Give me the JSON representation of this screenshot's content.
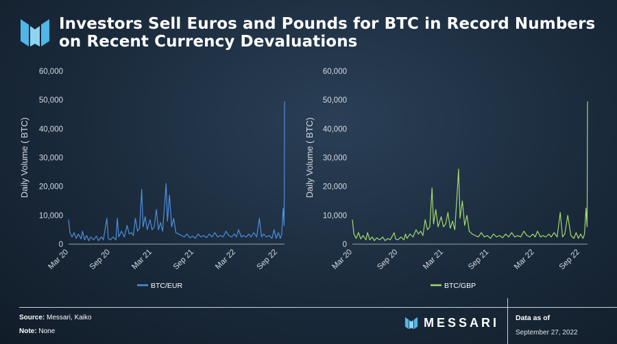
{
  "title": "Investors Sell Euros and Pounds for BTC in Record Numbers on Recent Currency Devaluations",
  "footer": {
    "source_label": "Source:",
    "source_value": "Messari, Kaiko",
    "note_label": "Note:",
    "note_value": "None",
    "brand": "MESSARI",
    "data_as_of_label": "Data as of",
    "data_as_of_date": "September 27, 2022"
  },
  "colors": {
    "eur": "#4f8fdc",
    "gbp": "#a4da6f",
    "brand": "#4fb6e8"
  },
  "chart_data": [
    {
      "type": "line",
      "ylabel": "Daily Volume ( BTC)",
      "xlabel": "",
      "ylim": [
        0,
        60000
      ],
      "yticks": [
        "0",
        "10,000",
        "20,000",
        "30,000",
        "40,000",
        "50,000",
        "60,000"
      ],
      "ytick_values": [
        0,
        10000,
        20000,
        30000,
        40000,
        50000,
        60000
      ],
      "xticks": [
        "Mar 20",
        "Sep 20",
        "Mar 21",
        "Sep 21",
        "Mar 22",
        "Sep 22"
      ],
      "xtick_months": [
        0,
        6,
        12,
        18,
        24,
        30
      ],
      "x_range_months": [
        0,
        31
      ],
      "grid": false,
      "legend": "bottom-center",
      "series": [
        {
          "name": "BTC/EUR",
          "color": "#4f8fdc",
          "points": [
            [
              0,
              8500
            ],
            [
              0.2,
              4000
            ],
            [
              0.5,
              2500
            ],
            [
              0.8,
              4000
            ],
            [
              1.1,
              2000
            ],
            [
              1.4,
              3500
            ],
            [
              1.8,
              1800
            ],
            [
              2.0,
              4500
            ],
            [
              2.3,
              1500
            ],
            [
              2.6,
              3000
            ],
            [
              2.9,
              1200
            ],
            [
              3.2,
              2500
            ],
            [
              3.6,
              1500
            ],
            [
              4.0,
              2800
            ],
            [
              4.3,
              1200
            ],
            [
              4.7,
              2500
            ],
            [
              5.0,
              1500
            ],
            [
              5.5,
              9000
            ],
            [
              5.7,
              2000
            ],
            [
              6.0,
              1500
            ],
            [
              6.4,
              2500
            ],
            [
              6.8,
              1500
            ],
            [
              7.0,
              9000
            ],
            [
              7.2,
              2500
            ],
            [
              7.6,
              4500
            ],
            [
              8.0,
              2500
            ],
            [
              8.4,
              6500
            ],
            [
              8.7,
              3500
            ],
            [
              9.0,
              4000
            ],
            [
              9.3,
              3000
            ],
            [
              9.6,
              9000
            ],
            [
              9.9,
              4500
            ],
            [
              10.2,
              5500
            ],
            [
              10.5,
              19000
            ],
            [
              10.7,
              6000
            ],
            [
              11.0,
              9500
            ],
            [
              11.3,
              5000
            ],
            [
              11.7,
              8500
            ],
            [
              12.0,
              5000
            ],
            [
              12.3,
              6000
            ],
            [
              12.6,
              12000
            ],
            [
              12.9,
              5000
            ],
            [
              13.2,
              7500
            ],
            [
              13.5,
              4500
            ],
            [
              13.8,
              14000
            ],
            [
              14.0,
              21000
            ],
            [
              14.2,
              8000
            ],
            [
              14.5,
              17000
            ],
            [
              14.8,
              6000
            ],
            [
              15.1,
              9000
            ],
            [
              15.4,
              4000
            ],
            [
              15.8,
              3500
            ],
            [
              16.2,
              3000
            ],
            [
              16.6,
              2500
            ],
            [
              17.0,
              3500
            ],
            [
              17.4,
              2200
            ],
            [
              17.8,
              2800
            ],
            [
              18.2,
              2000
            ],
            [
              18.6,
              3500
            ],
            [
              19.0,
              2500
            ],
            [
              19.4,
              3000
            ],
            [
              19.8,
              2200
            ],
            [
              20.2,
              3500
            ],
            [
              20.6,
              2500
            ],
            [
              21.0,
              4000
            ],
            [
              21.4,
              2500
            ],
            [
              21.8,
              3000
            ],
            [
              22.2,
              2500
            ],
            [
              22.6,
              4500
            ],
            [
              23.0,
              3000
            ],
            [
              23.4,
              2500
            ],
            [
              23.8,
              3500
            ],
            [
              24.1,
              2500
            ],
            [
              24.4,
              5000
            ],
            [
              24.8,
              2500
            ],
            [
              25.1,
              3000
            ],
            [
              25.5,
              2500
            ],
            [
              25.9,
              3500
            ],
            [
              26.2,
              2500
            ],
            [
              26.6,
              4000
            ],
            [
              27.0,
              2500
            ],
            [
              27.4,
              9000
            ],
            [
              27.7,
              2500
            ],
            [
              28.0,
              3500
            ],
            [
              28.4,
              2500
            ],
            [
              28.8,
              3000
            ],
            [
              29.2,
              2000
            ],
            [
              29.5,
              5000
            ],
            [
              29.8,
              2000
            ],
            [
              30.1,
              4000
            ],
            [
              30.4,
              2000
            ],
            [
              30.6,
              3500
            ],
            [
              30.8,
              12500
            ],
            [
              30.95,
              6500
            ],
            [
              31.0,
              49500
            ]
          ]
        }
      ]
    },
    {
      "type": "line",
      "ylabel": "Daily Volume ( BTC)",
      "xlabel": "",
      "ylim": [
        0,
        60000
      ],
      "yticks": [
        "0",
        "10,000",
        "20,000",
        "30,000",
        "40,000",
        "50,000",
        "60,000"
      ],
      "ytick_values": [
        0,
        10000,
        20000,
        30000,
        40000,
        50000,
        60000
      ],
      "xticks": [
        "Mar 20",
        "Sep 20",
        "Mar 21",
        "Sep 21",
        "Mar 22",
        "Sep 22"
      ],
      "xtick_months": [
        0,
        6,
        12,
        18,
        24,
        30
      ],
      "x_range_months": [
        0,
        31
      ],
      "grid": false,
      "legend": "bottom-center",
      "series": [
        {
          "name": "BTC/GBP",
          "color": "#a4da6f",
          "points": [
            [
              0,
              8500
            ],
            [
              0.2,
              3500
            ],
            [
              0.5,
              2000
            ],
            [
              0.8,
              4000
            ],
            [
              1.1,
              1800
            ],
            [
              1.4,
              3000
            ],
            [
              1.8,
              1500
            ],
            [
              2.0,
              4000
            ],
            [
              2.3,
              1500
            ],
            [
              2.6,
              2500
            ],
            [
              2.9,
              1200
            ],
            [
              3.2,
              2200
            ],
            [
              3.6,
              1500
            ],
            [
              4.0,
              2500
            ],
            [
              4.3,
              1200
            ],
            [
              4.7,
              2000
            ],
            [
              5.0,
              1500
            ],
            [
              5.5,
              4000
            ],
            [
              5.7,
              1800
            ],
            [
              6.0,
              1500
            ],
            [
              6.4,
              2500
            ],
            [
              6.8,
              1500
            ],
            [
              7.0,
              3500
            ],
            [
              7.2,
              2000
            ],
            [
              7.6,
              3500
            ],
            [
              8.0,
              2500
            ],
            [
              8.4,
              5000
            ],
            [
              8.7,
              3500
            ],
            [
              9.0,
              4500
            ],
            [
              9.3,
              3000
            ],
            [
              9.6,
              8500
            ],
            [
              9.9,
              5000
            ],
            [
              10.2,
              6000
            ],
            [
              10.5,
              19500
            ],
            [
              10.7,
              7000
            ],
            [
              11.0,
              12000
            ],
            [
              11.3,
              6000
            ],
            [
              11.7,
              9500
            ],
            [
              12.0,
              6000
            ],
            [
              12.3,
              7000
            ],
            [
              12.6,
              11000
            ],
            [
              12.9,
              5500
            ],
            [
              13.2,
              8000
            ],
            [
              13.5,
              5000
            ],
            [
              13.8,
              17000
            ],
            [
              14.0,
              26000
            ],
            [
              14.2,
              9000
            ],
            [
              14.5,
              15000
            ],
            [
              14.8,
              6500
            ],
            [
              15.1,
              10000
            ],
            [
              15.4,
              4500
            ],
            [
              15.8,
              3500
            ],
            [
              16.2,
              3000
            ],
            [
              16.6,
              2500
            ],
            [
              17.0,
              4000
            ],
            [
              17.4,
              2500
            ],
            [
              17.8,
              3000
            ],
            [
              18.2,
              2000
            ],
            [
              18.6,
              3500
            ],
            [
              19.0,
              2500
            ],
            [
              19.4,
              3000
            ],
            [
              19.8,
              2200
            ],
            [
              20.2,
              3500
            ],
            [
              20.6,
              2500
            ],
            [
              21.0,
              4000
            ],
            [
              21.4,
              2500
            ],
            [
              21.8,
              3000
            ],
            [
              22.2,
              2500
            ],
            [
              22.6,
              4500
            ],
            [
              23.0,
              3000
            ],
            [
              23.4,
              2500
            ],
            [
              23.8,
              3500
            ],
            [
              24.1,
              2500
            ],
            [
              24.4,
              4500
            ],
            [
              24.8,
              2500
            ],
            [
              25.1,
              3000
            ],
            [
              25.5,
              2500
            ],
            [
              25.9,
              3500
            ],
            [
              26.2,
              2500
            ],
            [
              26.6,
              4000
            ],
            [
              27.0,
              2500
            ],
            [
              27.4,
              11000
            ],
            [
              27.7,
              2500
            ],
            [
              28.0,
              3500
            ],
            [
              28.4,
              10000
            ],
            [
              28.8,
              3000
            ],
            [
              29.2,
              2000
            ],
            [
              29.5,
              4000
            ],
            [
              29.8,
              2000
            ],
            [
              30.1,
              3500
            ],
            [
              30.4,
              2000
            ],
            [
              30.6,
              3500
            ],
            [
              30.8,
              12500
            ],
            [
              30.95,
              6000
            ],
            [
              31.0,
              49500
            ]
          ]
        }
      ]
    }
  ]
}
